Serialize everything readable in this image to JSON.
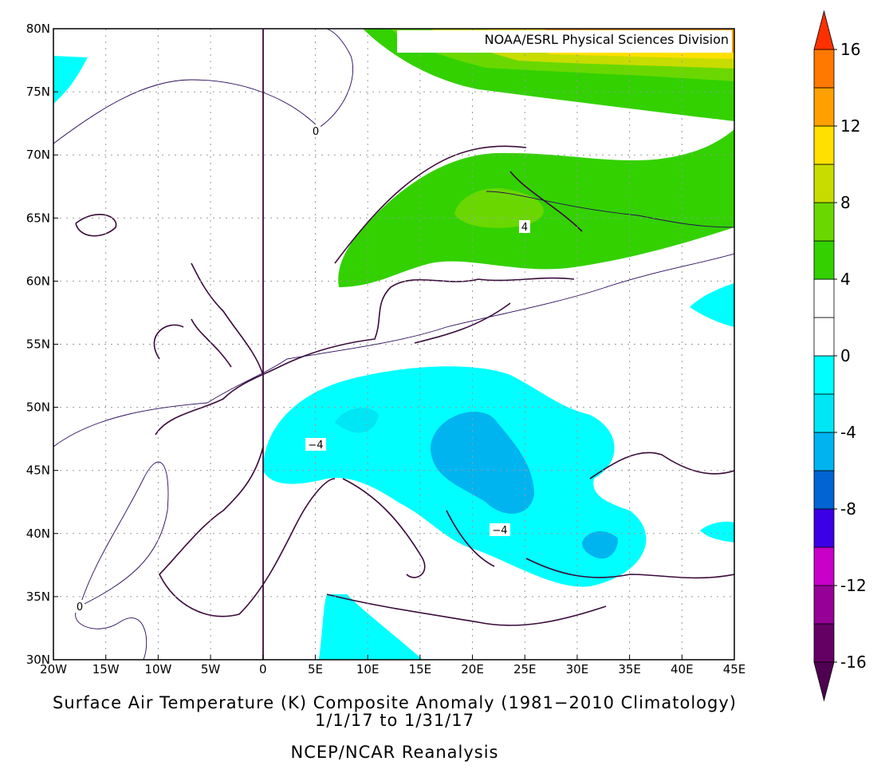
{
  "map": {
    "source": "NOAA/ESRL Physical Sciences Division",
    "title": "Surface Air Temperature (K) Composite Anomaly (1981−2010 Climatology)",
    "date_range": "1/1/17  to 1/31/17",
    "dataset": "NCEP/NCAR Reanalysis",
    "xlim": [
      -20,
      45
    ],
    "ylim": [
      30,
      80
    ],
    "xticks": [
      {
        "value": -20,
        "label": "20W"
      },
      {
        "value": -15,
        "label": "15W"
      },
      {
        "value": -10,
        "label": "10W"
      },
      {
        "value": -5,
        "label": "5W"
      },
      0,
      {
        "value": 5,
        "label": "5E"
      },
      {
        "value": 10,
        "label": "10E"
      },
      {
        "value": 15,
        "label": "15E"
      },
      {
        "value": 20,
        "label": "20E"
      },
      {
        "value": 25,
        "label": "25E"
      },
      {
        "value": 30,
        "label": "30E"
      },
      {
        "value": 35,
        "label": "35E"
      },
      {
        "value": 40,
        "label": "40E"
      },
      {
        "value": 45,
        "label": "45E"
      }
    ],
    "yticks": [
      {
        "value": 30,
        "label": "30N"
      },
      {
        "value": 35,
        "label": "35N"
      },
      {
        "value": 40,
        "label": "40N"
      },
      {
        "value": 45,
        "label": "45N"
      },
      {
        "value": 50,
        "label": "50N"
      },
      {
        "value": 55,
        "label": "55N"
      },
      {
        "value": 60,
        "label": "60N"
      },
      {
        "value": 65,
        "label": "65N"
      },
      {
        "value": 70,
        "label": "70N"
      },
      {
        "value": 75,
        "label": "75N"
      },
      {
        "value": 80,
        "label": "80N"
      }
    ],
    "grid": true,
    "contour_labels": [
      "0",
      "0",
      "4",
      "−4",
      "−4"
    ],
    "colorbar": {
      "clim": [
        -16,
        16
      ],
      "ticks": [
        -16,
        -12,
        -8,
        -4,
        0,
        4,
        8,
        12,
        16
      ],
      "colors": [
        "#640064",
        "#960096",
        "#c800c8",
        "#3c00e6",
        "#0064d2",
        "#00b4f0",
        "#00e6f5",
        "#00ffff",
        "#ffffff",
        "#ffffff",
        "#33d100",
        "#6ad800",
        "#c8dc00",
        "#ffe000",
        "#ffa000",
        "#ff7800"
      ],
      "over_color": "#ff3000",
      "under_color": "#500050"
    }
  }
}
